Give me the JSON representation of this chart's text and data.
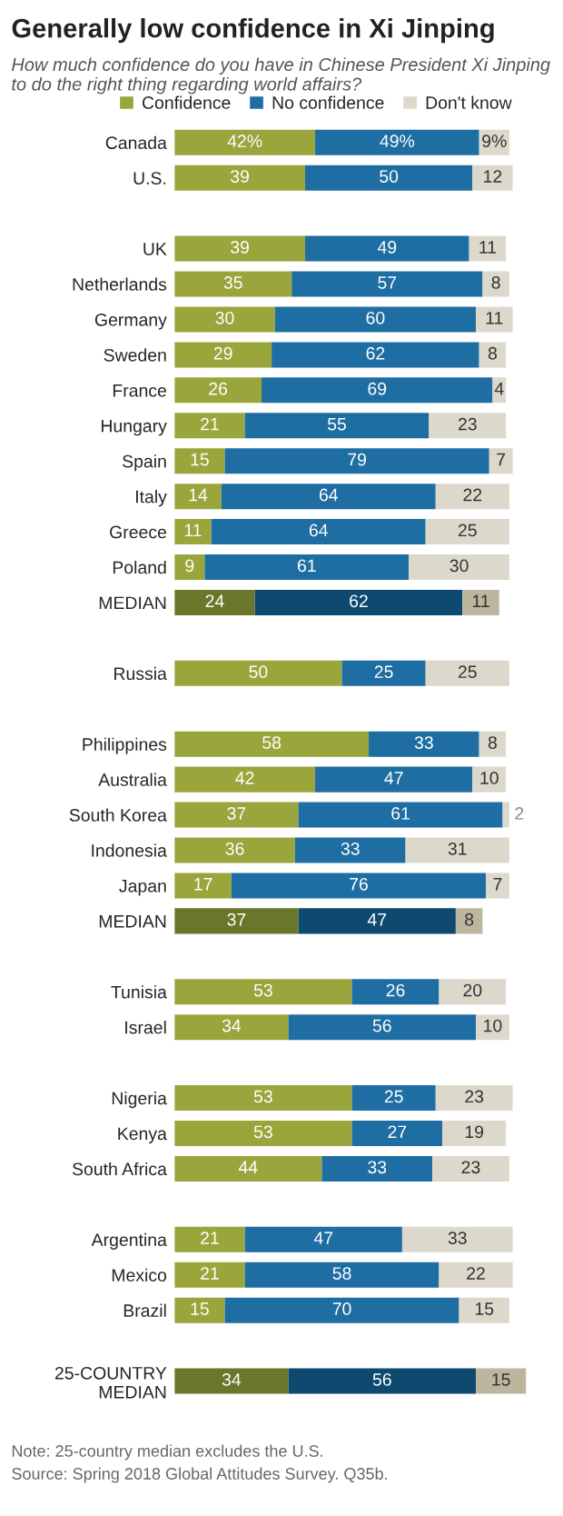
{
  "chart_data": {
    "type": "bar",
    "orientation": "horizontal",
    "stacked": true,
    "title": "Generally low confidence in Xi Jinping",
    "subtitle": "How much confidence do you have in Chinese President Xi Jinping to do the right thing regarding world affairs?",
    "categories": [
      "Canada",
      "U.S.",
      null,
      "UK",
      "Netherlands",
      "Germany",
      "Sweden",
      "France",
      "Hungary",
      "Spain",
      "Italy",
      "Greece",
      "Poland",
      "MEDIAN",
      null,
      "Russia",
      null,
      "Philippines",
      "Australia",
      "South Korea",
      "Indonesia",
      "Japan",
      "MEDIAN",
      null,
      "Tunisia",
      "Israel",
      null,
      "Nigeria",
      "Kenya",
      "South Africa",
      null,
      "Argentina",
      "Mexico",
      "Brazil",
      null,
      "25-COUNTRY\nMEDIAN"
    ],
    "series": [
      {
        "name": "Confidence",
        "color": "#9aa53c",
        "values": [
          42,
          39,
          null,
          39,
          35,
          30,
          29,
          26,
          21,
          15,
          14,
          11,
          9,
          24,
          null,
          50,
          null,
          58,
          42,
          37,
          36,
          17,
          37,
          null,
          53,
          34,
          null,
          53,
          53,
          44,
          null,
          21,
          21,
          15,
          null,
          34
        ],
        "colors": [
          "#9aa53c",
          "#9aa53c",
          null,
          "#9aa53c",
          "#9aa53c",
          "#9aa53c",
          "#9aa53c",
          "#9aa53c",
          "#9aa53c",
          "#9aa53c",
          "#9aa53c",
          "#9aa53c",
          "#9aa53c",
          "#6a7629",
          null,
          "#9aa53c",
          null,
          "#9aa53c",
          "#9aa53c",
          "#9aa53c",
          "#9aa53c",
          "#9aa53c",
          "#6a7629",
          null,
          "#9aa53c",
          "#9aa53c",
          null,
          "#9aa53c",
          "#9aa53c",
          "#9aa53c",
          null,
          "#9aa53c",
          "#9aa53c",
          "#9aa53c",
          null,
          "#6a7629"
        ],
        "value_labels": [
          "42%",
          "39",
          null,
          "39",
          "35",
          "30",
          "29",
          "26",
          "21",
          "15",
          "14",
          "11",
          "9",
          "24",
          null,
          "50",
          null,
          "58",
          "42",
          "37",
          "36",
          "17",
          "37",
          null,
          "53",
          "34",
          null,
          "53",
          "53",
          "44",
          null,
          "21",
          "21",
          "15",
          null,
          "34"
        ]
      },
      {
        "name": "No confidence",
        "color": "#1f6ea3",
        "values": [
          49,
          50,
          null,
          49,
          57,
          60,
          62,
          69,
          55,
          79,
          64,
          64,
          61,
          62,
          null,
          25,
          null,
          33,
          47,
          61,
          33,
          76,
          47,
          null,
          26,
          56,
          null,
          25,
          27,
          33,
          null,
          47,
          58,
          70,
          null,
          56
        ],
        "colors": [
          "#1f6ea3",
          "#1f6ea3",
          null,
          "#1f6ea3",
          "#1f6ea3",
          "#1f6ea3",
          "#1f6ea3",
          "#1f6ea3",
          "#1f6ea3",
          "#1f6ea3",
          "#1f6ea3",
          "#1f6ea3",
          "#1f6ea3",
          "#0e4a70",
          null,
          "#1f6ea3",
          null,
          "#1f6ea3",
          "#1f6ea3",
          "#1f6ea3",
          "#1f6ea3",
          "#1f6ea3",
          "#0e4a70",
          null,
          "#1f6ea3",
          "#1f6ea3",
          null,
          "#1f6ea3",
          "#1f6ea3",
          "#1f6ea3",
          null,
          "#1f6ea3",
          "#1f6ea3",
          "#1f6ea3",
          null,
          "#0e4a70"
        ],
        "value_labels": [
          "49%",
          "50",
          null,
          "49",
          "57",
          "60",
          "62",
          "69",
          "55",
          "79",
          "64",
          "64",
          "61",
          "62",
          null,
          "25",
          null,
          "33",
          "47",
          "61",
          "33",
          "76",
          "47",
          null,
          "26",
          "56",
          null,
          "25",
          "27",
          "33",
          null,
          "47",
          "58",
          "70",
          null,
          "56"
        ]
      },
      {
        "name": "Don't know",
        "color": "#dcd8cb",
        "values": [
          9,
          12,
          null,
          11,
          8,
          11,
          8,
          4,
          23,
          7,
          22,
          25,
          30,
          11,
          null,
          25,
          null,
          8,
          10,
          2,
          31,
          7,
          8,
          null,
          20,
          10,
          null,
          23,
          19,
          23,
          null,
          33,
          22,
          15,
          null,
          15
        ],
        "colors": [
          "#dcd8cb",
          "#dcd8cb",
          null,
          "#dcd8cb",
          "#dcd8cb",
          "#dcd8cb",
          "#dcd8cb",
          "#dcd8cb",
          "#dcd8cb",
          "#dcd8cb",
          "#dcd8cb",
          "#dcd8cb",
          "#dcd8cb",
          "#bdb69f",
          null,
          "#dcd8cb",
          null,
          "#dcd8cb",
          "#dcd8cb",
          "#dcd8cb",
          "#dcd8cb",
          "#dcd8cb",
          "#bdb69f",
          null,
          "#dcd8cb",
          "#dcd8cb",
          null,
          "#dcd8cb",
          "#dcd8cb",
          "#dcd8cb",
          null,
          "#dcd8cb",
          "#dcd8cb",
          "#dcd8cb",
          null,
          "#bdb69f"
        ],
        "value_labels": [
          "9%",
          "12",
          null,
          "11",
          "8",
          "11",
          "8",
          "4",
          "23",
          "7",
          "22",
          "25",
          "30",
          "11",
          null,
          "25",
          null,
          "8",
          "10",
          "2",
          "31",
          "7",
          "8",
          null,
          "20",
          "10",
          null,
          "23",
          "19",
          "23",
          null,
          "33",
          "22",
          "15",
          null,
          "15"
        ]
      }
    ],
    "legend": "top",
    "tick_labels": "y",
    "annotations": [
      "Note: 25-country median excludes the U.S.",
      "Source: Spring 2018 Global Attitudes Survey. Q35b."
    ]
  }
}
